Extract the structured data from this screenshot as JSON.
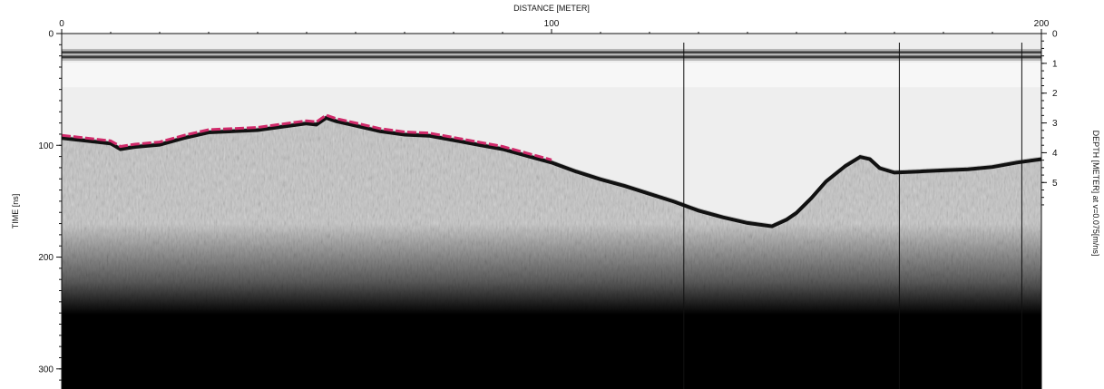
{
  "chart_data": {
    "type": "heatmap",
    "title": "",
    "xlabel": "DISTANCE [METER]",
    "ylabel": "TIME [ns]",
    "y2label": "DEPTH [METER] at v=0.075[m/ns]",
    "xlim": [
      0,
      200
    ],
    "ylim": [
      0,
      318
    ],
    "y2lim": [
      0,
      11.93
    ],
    "x_ticks": [
      0,
      100,
      200
    ],
    "y_ticks": [
      0,
      100,
      200,
      300
    ],
    "y2_ticks": [
      0,
      1,
      2,
      3,
      4,
      5
    ],
    "grid": false,
    "legend": "none",
    "colors": {
      "surface_reflection": "#d02a6a",
      "background_air": "#eeeeee",
      "deep_signal": "#000000"
    },
    "direct_wave_bands_ns": [
      17,
      21
    ],
    "vertical_markers_m": [
      127,
      171,
      196
    ],
    "reflector": {
      "x": [
        0,
        4,
        10,
        12,
        15,
        20,
        25,
        30,
        35,
        40,
        45,
        50,
        52,
        54,
        56,
        60,
        65,
        70,
        75,
        80,
        85,
        90,
        95,
        100,
        105,
        110,
        115,
        120,
        125,
        130,
        135,
        140,
        145,
        148,
        150,
        153,
        156,
        160,
        163,
        165,
        167,
        170,
        175,
        180,
        185,
        190,
        195,
        200
      ],
      "y": [
        91,
        93,
        96,
        101,
        99,
        97,
        91,
        86,
        85,
        84,
        81,
        78,
        79,
        73,
        76,
        80,
        85,
        88,
        89,
        93,
        97,
        101,
        107,
        113,
        121,
        128,
        134,
        141,
        148,
        156,
        162,
        167,
        170,
        164,
        158,
        145,
        130,
        116,
        108,
        110,
        118,
        122,
        121,
        120,
        119,
        117,
        113,
        110
      ]
    }
  }
}
